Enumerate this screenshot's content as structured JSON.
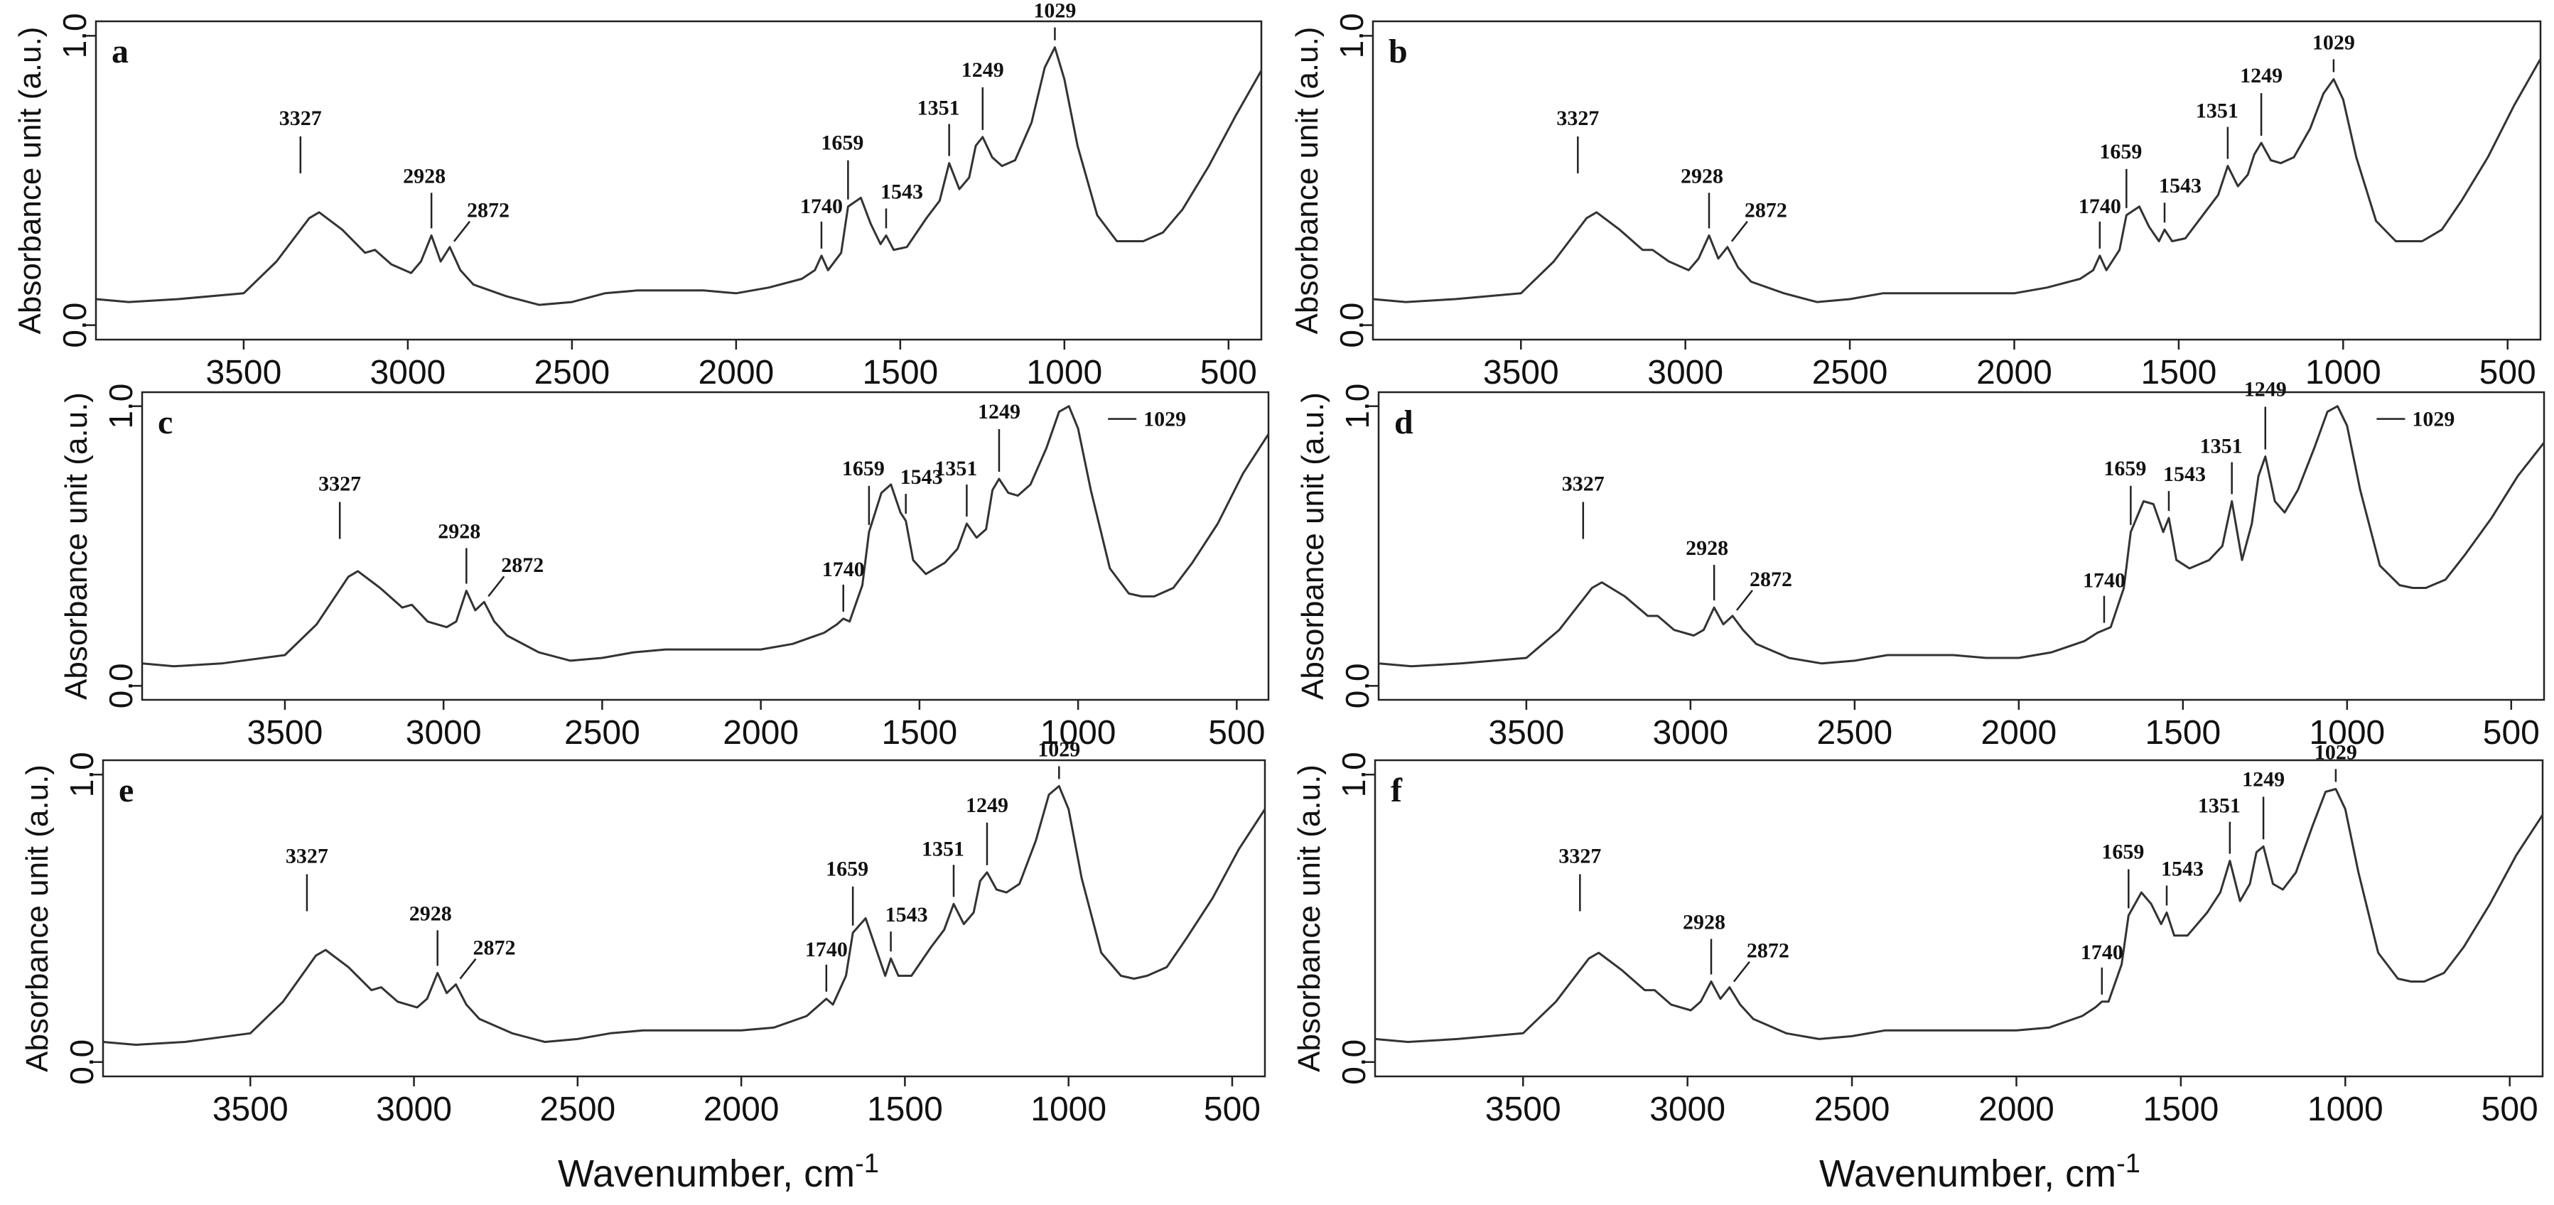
{
  "chart_data": [
    {
      "panel": "a",
      "type": "line",
      "ylabel": "Absorbance unit (a.u.)",
      "yticks": [
        "0.0",
        "1.0"
      ],
      "ylim": [
        -0.05,
        1.05
      ],
      "xlim": [
        3950,
        400
      ],
      "xticks": [
        3500,
        3000,
        2500,
        2000,
        1500,
        1000,
        500
      ],
      "series": [
        {
          "name": "spectrum a",
          "x": [
            3950,
            3850,
            3700,
            3500,
            3400,
            3300,
            3270,
            3200,
            3130,
            3100,
            3050,
            2990,
            2960,
            2928,
            2900,
            2872,
            2840,
            2800,
            2700,
            2600,
            2500,
            2400,
            2300,
            2200,
            2100,
            2000,
            1900,
            1800,
            1760,
            1740,
            1720,
            1680,
            1659,
            1620,
            1590,
            1560,
            1543,
            1520,
            1480,
            1420,
            1380,
            1351,
            1320,
            1290,
            1270,
            1249,
            1220,
            1190,
            1150,
            1100,
            1060,
            1029,
            1000,
            960,
            900,
            840,
            800,
            760,
            700,
            640,
            560,
            480,
            400
          ],
          "y": [
            0.09,
            0.08,
            0.09,
            0.11,
            0.22,
            0.37,
            0.39,
            0.33,
            0.25,
            0.26,
            0.21,
            0.18,
            0.22,
            0.31,
            0.22,
            0.27,
            0.19,
            0.14,
            0.1,
            0.07,
            0.08,
            0.11,
            0.12,
            0.12,
            0.12,
            0.11,
            0.13,
            0.16,
            0.19,
            0.24,
            0.19,
            0.25,
            0.41,
            0.44,
            0.35,
            0.28,
            0.31,
            0.26,
            0.27,
            0.37,
            0.43,
            0.56,
            0.47,
            0.51,
            0.62,
            0.65,
            0.58,
            0.55,
            0.57,
            0.7,
            0.89,
            0.96,
            0.85,
            0.62,
            0.38,
            0.29,
            0.29,
            0.29,
            0.32,
            0.4,
            0.55,
            0.72,
            0.88
          ]
        }
      ],
      "annotations": [
        "3327",
        "2928",
        "2872",
        "1740",
        "1659",
        "1543",
        "1351",
        "1249",
        "1029"
      ]
    },
    {
      "panel": "b",
      "type": "line",
      "ylabel": "Absorbance unit (a.u.)",
      "yticks": [
        "0.0",
        "1.0"
      ],
      "ylim": [
        -0.05,
        1.05
      ],
      "xlim": [
        3950,
        400
      ],
      "xticks": [
        3500,
        3000,
        2500,
        2000,
        1500,
        1000,
        500
      ],
      "series": [
        {
          "name": "spectrum b",
          "x": [
            3950,
            3850,
            3700,
            3500,
            3400,
            3300,
            3270,
            3200,
            3130,
            3100,
            3050,
            2990,
            2960,
            2928,
            2900,
            2872,
            2840,
            2800,
            2700,
            2600,
            2500,
            2400,
            2300,
            2200,
            2100,
            2000,
            1900,
            1800,
            1760,
            1740,
            1720,
            1680,
            1659,
            1620,
            1590,
            1560,
            1543,
            1520,
            1480,
            1420,
            1380,
            1351,
            1320,
            1290,
            1270,
            1249,
            1220,
            1190,
            1150,
            1100,
            1060,
            1029,
            1000,
            960,
            900,
            840,
            800,
            760,
            700,
            640,
            560,
            480,
            400
          ],
          "y": [
            0.09,
            0.08,
            0.09,
            0.11,
            0.22,
            0.37,
            0.39,
            0.33,
            0.26,
            0.26,
            0.22,
            0.19,
            0.23,
            0.31,
            0.23,
            0.27,
            0.2,
            0.15,
            0.11,
            0.08,
            0.09,
            0.11,
            0.11,
            0.11,
            0.11,
            0.11,
            0.13,
            0.16,
            0.19,
            0.24,
            0.19,
            0.26,
            0.38,
            0.41,
            0.34,
            0.29,
            0.33,
            0.29,
            0.3,
            0.39,
            0.45,
            0.55,
            0.48,
            0.52,
            0.59,
            0.63,
            0.57,
            0.56,
            0.58,
            0.68,
            0.8,
            0.85,
            0.78,
            0.58,
            0.36,
            0.29,
            0.29,
            0.29,
            0.33,
            0.43,
            0.58,
            0.76,
            0.92
          ]
        }
      ],
      "annotations": [
        "3327",
        "2928",
        "2872",
        "1740",
        "1659",
        "1543",
        "1351",
        "1249",
        "1029"
      ]
    },
    {
      "panel": "c",
      "type": "line",
      "ylabel": "Absorbance unit (a.u.)",
      "yticks": [
        "0.0",
        "1.0"
      ],
      "ylim": [
        -0.05,
        1.05
      ],
      "xlim": [
        3950,
        400
      ],
      "xticks": [
        3500,
        3000,
        2500,
        2000,
        1500,
        1000,
        500
      ],
      "series": [
        {
          "name": "spectrum c",
          "x": [
            3950,
            3850,
            3700,
            3500,
            3400,
            3300,
            3270,
            3200,
            3130,
            3100,
            3050,
            2990,
            2960,
            2928,
            2900,
            2872,
            2840,
            2800,
            2700,
            2600,
            2500,
            2400,
            2300,
            2200,
            2100,
            2000,
            1900,
            1800,
            1760,
            1740,
            1720,
            1680,
            1659,
            1620,
            1590,
            1560,
            1543,
            1520,
            1480,
            1420,
            1380,
            1351,
            1320,
            1290,
            1270,
            1249,
            1220,
            1190,
            1150,
            1100,
            1060,
            1029,
            1000,
            960,
            900,
            840,
            800,
            760,
            700,
            640,
            560,
            480,
            400
          ],
          "y": [
            0.08,
            0.07,
            0.08,
            0.11,
            0.22,
            0.39,
            0.41,
            0.35,
            0.28,
            0.29,
            0.23,
            0.21,
            0.23,
            0.34,
            0.27,
            0.3,
            0.23,
            0.18,
            0.12,
            0.09,
            0.1,
            0.12,
            0.13,
            0.13,
            0.13,
            0.13,
            0.15,
            0.19,
            0.22,
            0.24,
            0.23,
            0.36,
            0.55,
            0.69,
            0.72,
            0.62,
            0.59,
            0.45,
            0.4,
            0.44,
            0.49,
            0.58,
            0.53,
            0.56,
            0.7,
            0.74,
            0.69,
            0.68,
            0.72,
            0.85,
            0.98,
            1.0,
            0.92,
            0.7,
            0.42,
            0.33,
            0.32,
            0.32,
            0.35,
            0.44,
            0.58,
            0.76,
            0.9
          ]
        }
      ],
      "annotations": [
        "3327",
        "2928",
        "2872",
        "1740",
        "1659",
        "1543",
        "1351",
        "1249",
        "1029"
      ]
    },
    {
      "panel": "d",
      "type": "line",
      "ylabel": "Absorbance unit (a.u.)",
      "yticks": [
        "0.0",
        "1.0"
      ],
      "ylim": [
        -0.05,
        1.05
      ],
      "xlim": [
        3950,
        400
      ],
      "xticks": [
        3500,
        3000,
        2500,
        2000,
        1500,
        1000,
        500
      ],
      "series": [
        {
          "name": "spectrum d",
          "x": [
            3950,
            3850,
            3700,
            3500,
            3400,
            3300,
            3270,
            3200,
            3130,
            3100,
            3050,
            2990,
            2960,
            2928,
            2900,
            2872,
            2840,
            2800,
            2700,
            2600,
            2500,
            2400,
            2300,
            2200,
            2100,
            2000,
            1900,
            1800,
            1760,
            1740,
            1720,
            1680,
            1659,
            1620,
            1590,
            1560,
            1543,
            1520,
            1480,
            1420,
            1380,
            1351,
            1320,
            1290,
            1270,
            1249,
            1220,
            1190,
            1150,
            1100,
            1060,
            1029,
            1000,
            960,
            900,
            840,
            800,
            760,
            700,
            640,
            560,
            480,
            400
          ],
          "y": [
            0.08,
            0.07,
            0.08,
            0.1,
            0.2,
            0.35,
            0.37,
            0.32,
            0.25,
            0.25,
            0.2,
            0.18,
            0.2,
            0.28,
            0.22,
            0.25,
            0.2,
            0.15,
            0.1,
            0.08,
            0.09,
            0.11,
            0.11,
            0.11,
            0.1,
            0.1,
            0.12,
            0.16,
            0.19,
            0.2,
            0.21,
            0.35,
            0.55,
            0.66,
            0.65,
            0.55,
            0.6,
            0.45,
            0.42,
            0.45,
            0.5,
            0.66,
            0.45,
            0.58,
            0.75,
            0.82,
            0.66,
            0.62,
            0.7,
            0.85,
            0.98,
            1.0,
            0.93,
            0.7,
            0.43,
            0.36,
            0.35,
            0.35,
            0.38,
            0.47,
            0.6,
            0.75,
            0.87
          ]
        }
      ],
      "annotations": [
        "3327",
        "2928",
        "2872",
        "1740",
        "1659",
        "1543",
        "1351",
        "1249",
        "1029"
      ]
    },
    {
      "panel": "e",
      "type": "line",
      "ylabel": "Absorbance unit (a.u.)",
      "yticks": [
        "0.0",
        "1.0"
      ],
      "ylim": [
        -0.05,
        1.05
      ],
      "xlim": [
        3950,
        400
      ],
      "xticks": [
        3500,
        3000,
        2500,
        2000,
        1500,
        1000,
        500
      ],
      "series": [
        {
          "name": "spectrum e",
          "x": [
            3950,
            3850,
            3700,
            3500,
            3400,
            3300,
            3270,
            3200,
            3130,
            3100,
            3050,
            2990,
            2960,
            2928,
            2900,
            2872,
            2840,
            2800,
            2700,
            2600,
            2500,
            2400,
            2300,
            2200,
            2100,
            2000,
            1900,
            1800,
            1760,
            1740,
            1720,
            1680,
            1659,
            1620,
            1590,
            1560,
            1543,
            1520,
            1480,
            1420,
            1380,
            1351,
            1320,
            1290,
            1270,
            1249,
            1220,
            1190,
            1150,
            1100,
            1060,
            1029,
            1000,
            960,
            900,
            840,
            800,
            760,
            700,
            640,
            560,
            480,
            400
          ],
          "y": [
            0.07,
            0.06,
            0.07,
            0.1,
            0.21,
            0.37,
            0.39,
            0.33,
            0.25,
            0.26,
            0.21,
            0.19,
            0.22,
            0.31,
            0.24,
            0.27,
            0.2,
            0.15,
            0.1,
            0.07,
            0.08,
            0.1,
            0.11,
            0.11,
            0.11,
            0.11,
            0.12,
            0.16,
            0.2,
            0.22,
            0.2,
            0.3,
            0.45,
            0.5,
            0.4,
            0.3,
            0.36,
            0.3,
            0.3,
            0.4,
            0.46,
            0.55,
            0.48,
            0.52,
            0.63,
            0.66,
            0.6,
            0.59,
            0.62,
            0.77,
            0.93,
            0.96,
            0.88,
            0.64,
            0.38,
            0.3,
            0.29,
            0.3,
            0.33,
            0.43,
            0.57,
            0.74,
            0.88
          ]
        }
      ],
      "annotations": [
        "3327",
        "2928",
        "2872",
        "1740",
        "1659",
        "1543",
        "1351",
        "1249",
        "1029"
      ]
    },
    {
      "panel": "f",
      "type": "line",
      "ylabel": "Absorbance unit (a.u.)",
      "yticks": [
        "0.0",
        "1.0"
      ],
      "ylim": [
        -0.05,
        1.05
      ],
      "xlim": [
        3950,
        400
      ],
      "xticks": [
        3500,
        3000,
        2500,
        2000,
        1500,
        1000,
        500
      ],
      "series": [
        {
          "name": "spectrum f",
          "x": [
            3950,
            3850,
            3700,
            3500,
            3400,
            3300,
            3270,
            3200,
            3130,
            3100,
            3050,
            2990,
            2960,
            2928,
            2900,
            2872,
            2840,
            2800,
            2700,
            2600,
            2500,
            2400,
            2300,
            2200,
            2100,
            2000,
            1900,
            1800,
            1760,
            1740,
            1720,
            1680,
            1659,
            1620,
            1590,
            1560,
            1543,
            1520,
            1480,
            1420,
            1380,
            1351,
            1320,
            1290,
            1270,
            1249,
            1220,
            1190,
            1150,
            1100,
            1060,
            1029,
            1000,
            960,
            900,
            840,
            800,
            760,
            700,
            640,
            560,
            480,
            400
          ],
          "y": [
            0.08,
            0.07,
            0.08,
            0.1,
            0.21,
            0.36,
            0.38,
            0.32,
            0.25,
            0.25,
            0.2,
            0.18,
            0.21,
            0.28,
            0.22,
            0.26,
            0.2,
            0.15,
            0.1,
            0.08,
            0.09,
            0.11,
            0.11,
            0.11,
            0.11,
            0.11,
            0.12,
            0.16,
            0.19,
            0.21,
            0.21,
            0.34,
            0.51,
            0.59,
            0.55,
            0.48,
            0.52,
            0.44,
            0.44,
            0.52,
            0.59,
            0.7,
            0.56,
            0.62,
            0.73,
            0.75,
            0.62,
            0.6,
            0.66,
            0.82,
            0.94,
            0.95,
            0.88,
            0.66,
            0.38,
            0.29,
            0.28,
            0.28,
            0.31,
            0.4,
            0.55,
            0.72,
            0.86
          ]
        }
      ],
      "annotations": [
        "3327",
        "2928",
        "2872",
        "1740",
        "1659",
        "1543",
        "1351",
        "1249",
        "1029"
      ]
    }
  ],
  "xlabel": "Wavenumber, cm",
  "xlabel_sup": "-1"
}
